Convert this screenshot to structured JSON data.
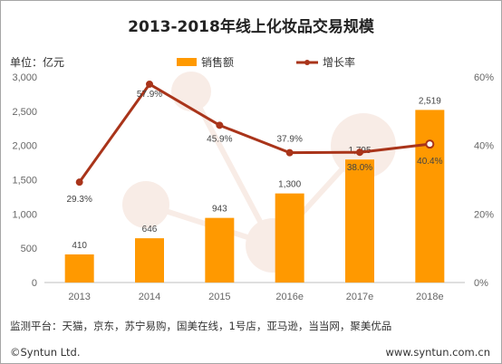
{
  "chart_data": {
    "type": "bar+line",
    "title": "2013-2018年线上化妆品交易规模",
    "ylabel": "单位：亿元",
    "categories": [
      "2013",
      "2014",
      "2015",
      "2016e",
      "2017e",
      "2018e"
    ],
    "series": [
      {
        "name": "销售额",
        "type": "bar",
        "axis": "left",
        "values": [
          410,
          646,
          943,
          1300,
          1795,
          2519
        ],
        "labels": [
          "410",
          "646",
          "943",
          "1,300",
          "1,795",
          "2,519"
        ],
        "color": "#ff9900"
      },
      {
        "name": "增长率",
        "type": "line",
        "axis": "right",
        "values": [
          29.3,
          57.9,
          45.9,
          37.9,
          38.0,
          40.4
        ],
        "labels": [
          "29.3%",
          "57.9%",
          "45.9%",
          "37.9%",
          "38.0%",
          "40.4%"
        ],
        "color": "#a9341a"
      }
    ],
    "ylim_left": [
      0,
      3000
    ],
    "ylim_right": [
      0,
      60
    ],
    "y_ticks_left": [
      "0",
      "500",
      "1,000",
      "1,500",
      "2,000",
      "2,500",
      "3,000"
    ],
    "y_ticks_right": [
      "0%",
      "20%",
      "40%",
      "60%"
    ],
    "legend_position": "top-center",
    "grid": false
  },
  "footer": {
    "sources": "监测平台：天猫，京东，苏宁易购，国美在线，1号店，亚马逊，当当网，聚美优品",
    "copyright": "©Syntun Ltd.",
    "website": "www.syntun.com.cn"
  }
}
